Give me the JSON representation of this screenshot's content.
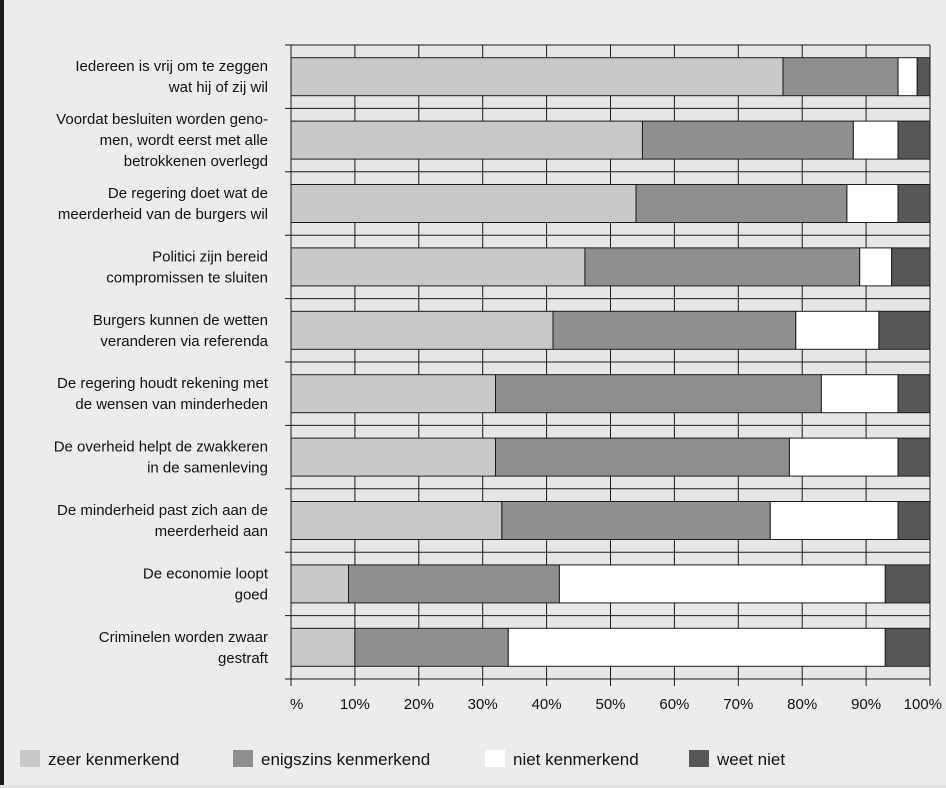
{
  "chart_data": {
    "type": "bar",
    "orientation": "horizontal",
    "stacked": true,
    "categories": [
      [
        "Iedereen is vrij om te zeggen",
        "wat hij of zij wil"
      ],
      [
        "Voordat besluiten worden geno-",
        "men, wordt eerst met alle",
        "betrokkenen overlegd"
      ],
      [
        "De regering doet wat de",
        "meerderheid van de burgers wil"
      ],
      [
        "Politici zijn bereid",
        "compromissen te sluiten"
      ],
      [
        "Burgers kunnen de wetten",
        "veranderen via referenda"
      ],
      [
        "De regering houdt rekening met",
        "de wensen van minderheden"
      ],
      [
        "De overheid helpt de zwakkeren",
        "in de samenleving"
      ],
      [
        "De minderheid past zich aan de",
        "meerderheid aan"
      ],
      [
        "De economie loopt",
        "goed"
      ],
      [
        "Criminelen worden zwaar",
        "gestraft"
      ]
    ],
    "series": [
      {
        "name": "zeer kenmerkend",
        "color": "#c9c9c9",
        "values": [
          77,
          55,
          54,
          46,
          41,
          32,
          32,
          33,
          9,
          10
        ]
      },
      {
        "name": "enigszins kenmerkend",
        "color": "#8f8f8f",
        "values": [
          18,
          33,
          33,
          43,
          38,
          51,
          46,
          42,
          33,
          24
        ]
      },
      {
        "name": "niet kenmerkend",
        "color": "#ffffff",
        "values": [
          3,
          7,
          8,
          5,
          13,
          12,
          17,
          20,
          51,
          59
        ]
      },
      {
        "name": "weet niet",
        "color": "#575757",
        "values": [
          2,
          5,
          5,
          6,
          8,
          5,
          5,
          5,
          7,
          7
        ]
      }
    ],
    "xticks": [
      "%",
      "10%",
      "20%",
      "30%",
      "40%",
      "50%",
      "60%",
      "70%",
      "80%",
      "90%",
      "100%"
    ],
    "xlim": [
      0,
      100
    ],
    "grid": true,
    "legend_position": "bottom",
    "title": "",
    "xlabel": "",
    "ylabel": ""
  }
}
